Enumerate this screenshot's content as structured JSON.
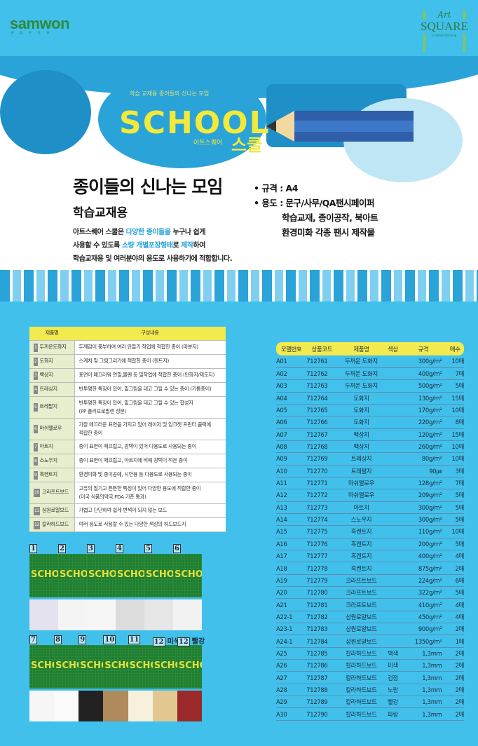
{
  "header": {
    "left_logo": "samwon",
    "left_logo_sub": "PAPER",
    "right_logo_art": "Art",
    "right_logo_square": "SQUARE",
    "right_logo_tag": "Creative thinking"
  },
  "banner": {
    "arc_text": "학습 교재용 종이들의 신나는 모임",
    "logo_en": "SCHOOL",
    "logo_brand": "아트스퀘어",
    "logo_ko": "스쿨",
    "title": "종이들의 신나는 모임",
    "subtitle": "학습교재용",
    "desc": [
      [
        "아트스퀘어 스쿨은 ",
        "다양한 종이들을",
        " 누구나 쉽게"
      ],
      [
        "사용할 수 있도록 ",
        "소량 개별포장형태",
        "로 ",
        "제작",
        "하여"
      ],
      [
        "학습교재용 및 여러분야의 용도로 사용하기에 적합합니다."
      ]
    ],
    "spec_size": "• 규격 : A4",
    "spec_use": "• 용도 : 문구/사무/QA팬시페이퍼",
    "spec_use2": "학습교재, 종이공작, 북아트",
    "spec_use3": "환경미화 각종 팬시 제작물"
  },
  "desc_table": {
    "headers": [
      "제품명",
      "구성내용"
    ],
    "rows": [
      [
        "1",
        "두꺼운도화지",
        "두께감이 풍부하여 여러 만들기 작업에 적합한 종이 (마분지)"
      ],
      [
        "2",
        "도화지",
        "스케치 및 그림그리기에 적합한 종이 (켄트지)"
      ],
      [
        "3",
        "백상지",
        "표면이 매끄러워 연필,볼펜 등 필작업에 적합한 종이 (만화지/제도지)"
      ],
      [
        "4",
        "트레싱지",
        "반투명한 특징이 있어, 밑그림을 대고 그릴 수 있는 종이 (기름종이)"
      ],
      [
        "5",
        "트레팔지",
        "반투명한 특징이 있어, 밑그림을 대고 그릴 수 있는 합성지\n(PP 폴리프로필렌 성분)"
      ],
      [
        "6",
        "마쉬멜로우",
        "가장 매끄러운 표면을 가지고 있어 레이저 및 잉크젯 프린터 출력에\n적합한 종이"
      ],
      [
        "7",
        "아트지",
        "종이 표면이 매끄럽고, 광택이 있어 다용도로 사용되는 종이"
      ],
      [
        "8",
        "스노우지",
        "종이 표면이 매끄럽고, 아트지에 비해 광택이 적은 종이"
      ],
      [
        "9",
        "흑켄트지",
        "환경미화 및 종이공예, 시안용 등 다용도로 사용되는 종이"
      ],
      [
        "10",
        "크라프트보드",
        "고유의 질기고 튼튼한 특징이 있어 다양한 용도에 적합한 종이\n(미국 식품의약국 FDA 기준 통과)"
      ],
      [
        "11",
        "삼원로얄보드",
        "가볍고 단단하여 쉽게 변색이 되지 않는 보드"
      ],
      [
        "12",
        "칼라하드보드",
        "여러 용도로 사용할 수 있는 다양한 색상의 하드보드지"
      ]
    ]
  },
  "model_table": {
    "headers": [
      "모델번호",
      "상품코드",
      "제품명",
      "색상",
      "규격",
      "매수"
    ],
    "rows": [
      [
        "A01",
        "712761",
        "두꺼운 도화지",
        "",
        "300g/m²",
        "10매"
      ],
      [
        "A02",
        "712762",
        "두꺼운 도화지",
        "",
        "400g/m²",
        "7매"
      ],
      [
        "A03",
        "712763",
        "두꺼운 도화지",
        "",
        "500g/m²",
        "5매"
      ],
      [
        "A04",
        "712764",
        "도화지",
        "",
        "130g/m²",
        "15매"
      ],
      [
        "A05",
        "712765",
        "도화지",
        "",
        "170g/m²",
        "10매"
      ],
      [
        "A06",
        "712766",
        "도화지",
        "",
        "220g/m²",
        "8매"
      ],
      [
        "A07",
        "712767",
        "백상지",
        "",
        "120g/m²",
        "15매"
      ],
      [
        "A08",
        "712768",
        "백상지",
        "",
        "260g/m²",
        "10매"
      ],
      [
        "A09",
        "712769",
        "트레싱지",
        "",
        "80g/m²",
        "10매"
      ],
      [
        "A10",
        "712770",
        "트레팔지",
        "",
        "90㎛",
        "3매"
      ],
      [
        "A11",
        "712771",
        "마쉬멜로우",
        "",
        "128g/m²",
        "7매"
      ],
      [
        "A12",
        "712772",
        "마쉬멜로우",
        "",
        "209g/m²",
        "5매"
      ],
      [
        "A13",
        "712773",
        "아트지",
        "",
        "300g/m²",
        "5매"
      ],
      [
        "A14",
        "712774",
        "스노우지",
        "",
        "300g/m²",
        "5매"
      ],
      [
        "A15",
        "712775",
        "흑켄트지",
        "",
        "110g/m²",
        "10매"
      ],
      [
        "A16",
        "712776",
        "흑켄트지",
        "",
        "200g/m²",
        "5매"
      ],
      [
        "A17",
        "712777",
        "흑켄트지",
        "",
        "400g/m²",
        "4매"
      ],
      [
        "A18",
        "712778",
        "흑켄트지",
        "",
        "875g/m²",
        "2매"
      ],
      [
        "A19",
        "712779",
        "크라프트보드",
        "",
        "224g/m²",
        "6매"
      ],
      [
        "A20",
        "712780",
        "크라프트보드",
        "",
        "322g/m²",
        "5매"
      ],
      [
        "A21",
        "712781",
        "크라프트보드",
        "",
        "410g/m²",
        "4매"
      ],
      [
        "A22-1",
        "712782",
        "삼원로얄보드",
        "",
        "450g/m²",
        "4매"
      ],
      [
        "A23-1",
        "712783",
        "삼원로얄보드",
        "",
        "900g/m²",
        "2매"
      ],
      [
        "A24-1",
        "712784",
        "삼원로얄보드",
        "",
        "1350g/m²",
        "1매"
      ],
      [
        "A25",
        "712785",
        "칼라하드보드",
        "백색",
        "1,3mm",
        "2매"
      ],
      [
        "A26",
        "712786",
        "칼라하드보드",
        "미색",
        "1,3mm",
        "2매"
      ],
      [
        "A27",
        "712787",
        "칼라하드보드",
        "검정",
        "1,3mm",
        "2매"
      ],
      [
        "A28",
        "712788",
        "칼라하드보드",
        "노랑",
        "1,3mm",
        "2매"
      ],
      [
        "A29",
        "712789",
        "칼라하드보드",
        "빨강",
        "1,3mm",
        "2매"
      ],
      [
        "A30",
        "712790",
        "칼라하드보드",
        "파랑",
        "1,3mm",
        "2매"
      ]
    ]
  },
  "thumbnails": {
    "cover_text": "SCHOOL",
    "row1": [
      {
        "n": "1",
        "c": "",
        "color": "#e4e2ee"
      },
      {
        "n": "2",
        "c": "",
        "color": "#f4f4f4"
      },
      {
        "n": "3",
        "c": "",
        "color": "#f6f6f6"
      },
      {
        "n": "4",
        "c": "",
        "color": "#dcdcdc"
      },
      {
        "n": "5",
        "c": "",
        "color": "#e6e6e6"
      },
      {
        "n": "6",
        "c": "",
        "color": "#f2f2f2"
      }
    ],
    "row2": [
      {
        "n": "7",
        "c": "",
        "color": "#f6f6f6"
      },
      {
        "n": "8",
        "c": "",
        "color": "#fafafa"
      },
      {
        "n": "9",
        "c": "",
        "color": "#222222"
      },
      {
        "n": "10",
        "c": "",
        "color": "#b08a5c"
      },
      {
        "n": "11",
        "c": "",
        "color": "#f6f0dc"
      },
      {
        "n": "12",
        "c": "미색",
        "color": "#e2c890"
      },
      {
        "n": "12",
        "c": "빨강",
        "color": "#9a2a2a"
      }
    ]
  },
  "colors": {
    "background": "#41c0ec",
    "table_header": "#f2ea4f",
    "accent": "#2aa3d8",
    "logo_green": "#2f8a3a"
  }
}
